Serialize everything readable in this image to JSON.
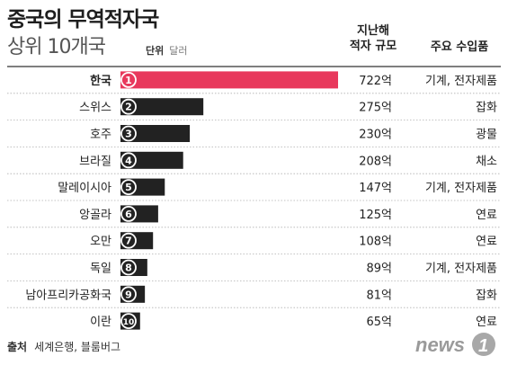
{
  "title": "중국의 무역적자국",
  "subtitle": "상위 10개국",
  "unit_label": "단위",
  "unit_value": "달러",
  "column_headers": {
    "deficit": [
      "지난해",
      "적자 규모"
    ],
    "imports": "주요 수입품"
  },
  "source_label": "출처",
  "source_value": "세계은행, 블룸버그",
  "logo_text": "news1",
  "colors": {
    "highlight": "#e8385c",
    "bar": "#222222",
    "rank_highlight_bg": "#ffffff",
    "rank_default_bg": "#ffffff"
  },
  "chart_data": {
    "type": "bar",
    "orientation": "horizontal",
    "unit": "억 달러",
    "categories": [
      "한국",
      "스위스",
      "호주",
      "브라질",
      "말레이시아",
      "앙골라",
      "오만",
      "독일",
      "남아프리카공화국",
      "이란"
    ],
    "ranks": [
      "1",
      "2",
      "3",
      "4",
      "5",
      "6",
      "7",
      "8",
      "9",
      "10"
    ],
    "values": [
      722,
      275,
      230,
      208,
      147,
      125,
      108,
      89,
      81,
      65
    ],
    "value_labels": [
      "722억",
      "275억",
      "230억",
      "208억",
      "147억",
      "125억",
      "108억",
      "89억",
      "81억",
      "65억"
    ],
    "main_imports": [
      "기계, 전자제품",
      "잡화",
      "광물",
      "채소",
      "기계, 전자제품",
      "연료",
      "연료",
      "기계, 전자제품",
      "잡화",
      "연료"
    ],
    "highlight_index": 0
  }
}
